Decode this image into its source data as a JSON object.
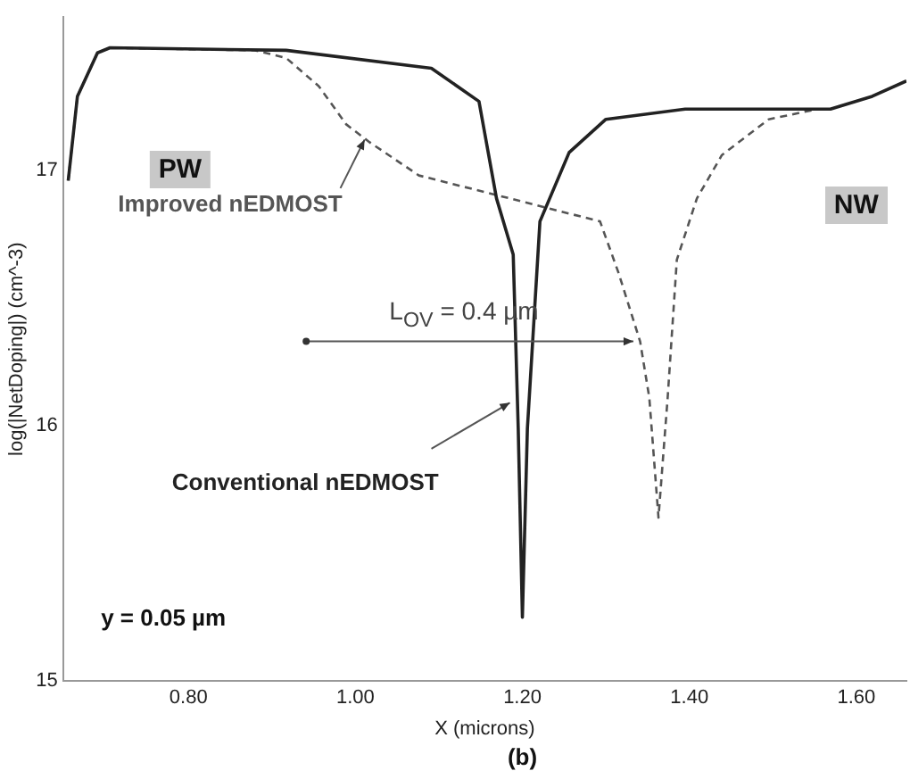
{
  "chart_data": {
    "type": "line",
    "xlabel": "X (microns)",
    "ylabel": "log(|NetDoping|) (cm^-3)",
    "xlim": [
      0.65,
      1.66
    ],
    "xticks": [
      {
        "value": 0.8,
        "label": "0.80"
      },
      {
        "value": 1.0,
        "label": "1.00"
      },
      {
        "value": 1.2,
        "label": "1.20"
      },
      {
        "value": 1.4,
        "label": "1.40"
      },
      {
        "value": 1.6,
        "label": "1.60"
      }
    ],
    "ylim": [
      15,
      17.6
    ],
    "yticks": [
      15,
      16,
      17
    ],
    "grid": false,
    "legend": false,
    "marker": "none",
    "series": [
      {
        "name": "Conventional nEDMOST",
        "color": "#222222",
        "line_style": "solid",
        "x": [
          0.656,
          0.667,
          0.691,
          0.706,
          0.917,
          1.091,
          1.148,
          1.169,
          1.189,
          1.195,
          1.2,
          1.206,
          1.221,
          1.256,
          1.3,
          1.395,
          1.569,
          1.619,
          1.66
        ],
        "values": [
          16.96,
          17.29,
          17.46,
          17.48,
          17.47,
          17.4,
          17.27,
          16.89,
          16.67,
          15.99,
          15.25,
          15.99,
          16.8,
          17.07,
          17.2,
          17.24,
          17.24,
          17.29,
          17.35
        ]
      },
      {
        "name": "Improved nEDMOST",
        "color": "#555555",
        "line_style": "dashed",
        "x": [
          0.656,
          0.667,
          0.691,
          0.706,
          0.88,
          0.917,
          0.956,
          0.989,
          1.017,
          1.076,
          1.185,
          1.293,
          1.315,
          1.341,
          1.352,
          1.363,
          1.374,
          1.385,
          1.409,
          1.439,
          1.495,
          1.554
        ],
        "values": [
          16.96,
          17.29,
          17.46,
          17.48,
          17.47,
          17.44,
          17.33,
          17.18,
          17.11,
          16.98,
          16.89,
          16.8,
          16.6,
          16.33,
          16.11,
          15.64,
          16.11,
          16.65,
          16.89,
          17.06,
          17.2,
          17.24
        ]
      }
    ],
    "annotations": [
      "PW",
      "NW",
      "L$_{OV}$ = 0.4 µm",
      "y = 0.05 µm",
      "(b)"
    ]
  }
}
